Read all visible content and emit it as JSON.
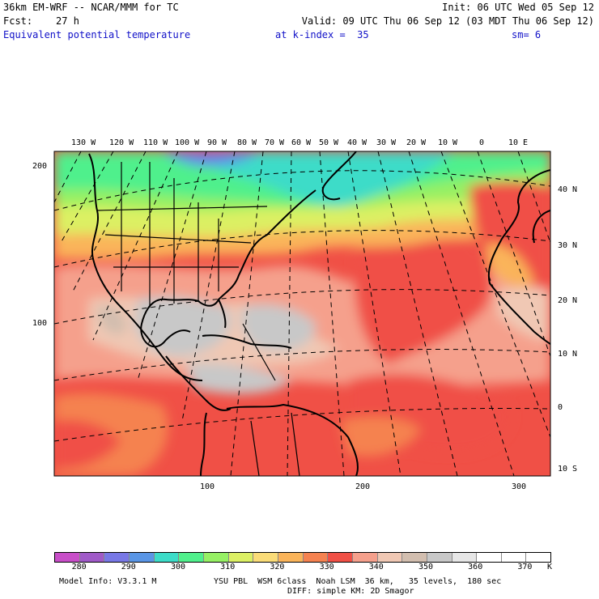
{
  "header": {
    "line1_left": "36km EM-WRF -- NCAR/MMM for TC",
    "line1_right": "Init: 06 UTC Wed 05 Sep 12",
    "line2_left": "Fcst:    27 h",
    "line2_right": "Valid: 09 UTC Thu 06 Sep 12 (03 MDT Thu 06 Sep 12)",
    "field": "Equivalent potential temperature",
    "level": "at k-index =  35",
    "smooth": "sm= 6"
  },
  "axes": {
    "lon_labels": [
      "130 W",
      "120 W",
      "110 W",
      "100 W",
      "90 W",
      "80 W",
      "70 W",
      "60 W",
      "50 W",
      "40 W",
      "30 W",
      "20 W",
      "10 W",
      "0",
      "10 E"
    ],
    "lat_labels": [
      "40 N",
      "30 N",
      "20 N",
      "10 N",
      "0",
      "10 S"
    ],
    "grid_y_labels": [
      "200",
      "100"
    ],
    "grid_x_labels": [
      "100",
      "200",
      "300"
    ]
  },
  "colorbar": {
    "unit": "K",
    "labels": [
      "280",
      "290",
      "300",
      "310",
      "320",
      "330",
      "340",
      "350",
      "360",
      "370"
    ],
    "colors": [
      "#c84ec8",
      "#a05ac8",
      "#7878e6",
      "#5a96e6",
      "#3cdcc8",
      "#50f08c",
      "#96f064",
      "#dcf064",
      "#fadc78",
      "#fab45a",
      "#f58250",
      "#f05046",
      "#f5a08c",
      "#f0c8b4",
      "#d2beaf",
      "#c8c8c8",
      "#e6e6e6",
      "#ffffff",
      "#ffffff",
      "#ffffff"
    ]
  },
  "footer": {
    "model_info": "Model Info: V3.3.1 M",
    "physics": "YSU PBL  WSM 6class  Noah LSM  36 km,   35 levels,  180 sec",
    "diffusion": "DIFF: simple KM: 2D Smagor"
  }
}
